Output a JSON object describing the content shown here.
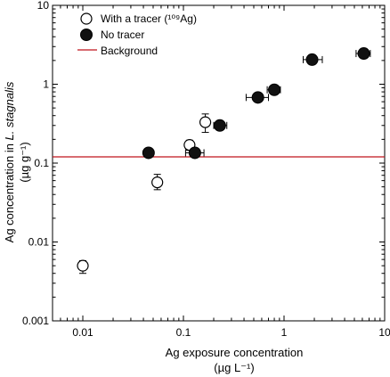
{
  "chart_data": {
    "type": "scatter",
    "xscale": "log",
    "yscale": "log",
    "xlim": [
      0.005,
      10
    ],
    "ylim": [
      0.001,
      10
    ],
    "xticks": [
      0.01,
      0.1,
      1,
      10
    ],
    "xtick_labels": [
      "0.01",
      "0.1",
      "1",
      "10"
    ],
    "yticks": [
      0.001,
      0.01,
      0.1,
      1,
      10
    ],
    "ytick_labels": [
      "0.001",
      "0.01",
      "0.1",
      "1",
      "10"
    ],
    "xlabel_line1": "Ag exposure concentration",
    "xlabel_line2": "(µg L⁻¹)",
    "ylabel_line1_prefix": "Ag concentration in ",
    "ylabel_line1_italic": "L. stagnalis",
    "ylabel_line2": "(µg g⁻¹)",
    "grid": false,
    "legend_position": "top-left",
    "background": {
      "name": "Background",
      "y": 0.12,
      "color": "#c0141c"
    },
    "series": [
      {
        "name": "With a tracer (¹⁰⁹Ag)",
        "marker": "open-circle",
        "points": [
          {
            "x": 0.01,
            "y": 0.005,
            "yerr_low": 0.004,
            "yerr_high": 0.0058
          },
          {
            "x": 0.055,
            "y": 0.057,
            "yerr_low": 0.046,
            "yerr_high": 0.072
          },
          {
            "x": 0.115,
            "y": 0.17,
            "yerr_low": 0.145,
            "yerr_high": 0.195
          },
          {
            "x": 0.165,
            "y": 0.33,
            "yerr_low": 0.245,
            "yerr_high": 0.42
          }
        ]
      },
      {
        "name": "No tracer",
        "marker": "filled-circle",
        "points": [
          {
            "x": 0.045,
            "y": 0.135
          },
          {
            "x": 0.13,
            "y": 0.135,
            "xerr_low": 0.105,
            "xerr_high": 0.16
          },
          {
            "x": 0.23,
            "y": 0.3,
            "xerr_low": 0.2,
            "xerr_high": 0.27
          },
          {
            "x": 0.55,
            "y": 0.68,
            "xerr_low": 0.42,
            "xerr_high": 0.7
          },
          {
            "x": 0.8,
            "y": 0.85,
            "xerr_low": 0.68,
            "xerr_high": 0.92,
            "yerr_low": 0.75,
            "yerr_high": 0.95
          },
          {
            "x": 1.9,
            "y": 2.05,
            "xerr_low": 1.55,
            "xerr_high": 2.4
          },
          {
            "x": 6.2,
            "y": 2.45,
            "xerr_low": 5.2,
            "xerr_high": 7.2
          }
        ]
      }
    ]
  }
}
